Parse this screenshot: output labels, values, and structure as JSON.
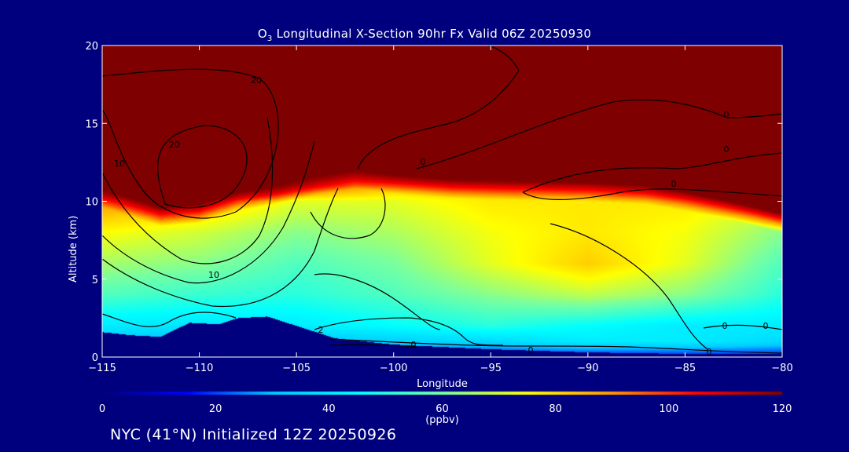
{
  "title_prefix": "O",
  "title_sub": "3",
  "title_rest": " Longitudinal X-Section 90hr  Fx Valid 06Z 20250930",
  "xlabel": "Longitude",
  "ylabel": "Altitude (km)",
  "colorbar_units": "(ppbv)",
  "footer": "NYC (41°N) Initialized 12Z 20250926",
  "colors": {
    "background": "#00007f",
    "stops": [
      "#00007f",
      "#0000ff",
      "#00c8ff",
      "#00ffff",
      "#78ffa0",
      "#ffff00",
      "#ff9600",
      "#ff0000",
      "#7f0000"
    ]
  },
  "chart_data": {
    "type": "heatmap",
    "title": "O3 Longitudinal X-Section 90hr  Fx Valid 06Z 20250930",
    "xlabel": "Longitude",
    "ylabel": "Altitude (km)",
    "xlim": [
      -115,
      -80
    ],
    "ylim": [
      0,
      20
    ],
    "xticks": [
      -115,
      -110,
      -105,
      -100,
      -95,
      -90,
      -85,
      -80
    ],
    "xtick_labels": [
      "−115",
      "−110",
      "−105",
      "−100",
      "−95",
      "−90",
      "−85",
      "−80"
    ],
    "yticks": [
      0,
      5,
      10,
      15,
      20
    ],
    "ytick_labels": [
      "0",
      "5",
      "10",
      "15",
      "20"
    ],
    "colorbar": {
      "label": "(ppbv)",
      "range": [
        0,
        120
      ],
      "ticks": [
        0,
        20,
        40,
        60,
        80,
        100,
        120
      ],
      "tick_labels": [
        "0",
        "20",
        "40",
        "60",
        "80",
        "100",
        "120"
      ]
    },
    "terrain_profile": {
      "x": [
        -115,
        -113.5,
        -112,
        -110.5,
        -109,
        -108,
        -106.5,
        -105,
        -103,
        -100,
        -95,
        -90,
        -85,
        -80
      ],
      "height_km": [
        1.6,
        1.4,
        1.3,
        2.2,
        2.1,
        2.5,
        2.6,
        2.0,
        1.2,
        0.8,
        0.5,
        0.3,
        0.2,
        0.2
      ]
    },
    "tropopause_height_km": {
      "x": [
        -115,
        -112,
        -110,
        -108,
        -106,
        -104,
        -102,
        -100,
        -97,
        -94,
        -90,
        -87,
        -85,
        -82,
        -80
      ],
      "values": [
        10.8,
        9.6,
        9.8,
        10.6,
        11.0,
        11.6,
        12.0,
        11.7,
        11.4,
        11.3,
        11.2,
        11.0,
        10.6,
        9.8,
        9.2
      ]
    },
    "field_ppbv": {
      "x": [
        -115,
        -110,
        -105,
        -100,
        -95,
        -90,
        -85,
        -80
      ],
      "y": [
        0,
        1,
        2,
        4,
        6,
        8,
        10,
        11,
        13,
        15,
        20
      ],
      "values": [
        [
          25,
          20,
          20,
          20,
          15,
          15,
          15,
          15
        ],
        [
          30,
          28,
          30,
          32,
          35,
          40,
          40,
          35
        ],
        [
          40,
          38,
          40,
          45,
          50,
          45,
          40,
          40
        ],
        [
          55,
          52,
          50,
          55,
          62,
          68,
          62,
          50
        ],
        [
          65,
          62,
          55,
          60,
          72,
          82,
          72,
          55
        ],
        [
          75,
          70,
          62,
          66,
          74,
          78,
          74,
          62
        ],
        [
          90,
          85,
          72,
          72,
          78,
          78,
          78,
          72
        ],
        [
          115,
          120,
          100,
          85,
          85,
          85,
          92,
          110
        ],
        [
          120,
          120,
          120,
          120,
          120,
          120,
          120,
          120
        ],
        [
          120,
          120,
          120,
          120,
          120,
          120,
          120,
          120
        ],
        [
          120,
          120,
          120,
          120,
          120,
          120,
          120,
          120
        ]
      ]
    },
    "contour_labels": [
      "20",
      "20",
      "10",
      "10",
      "0",
      "0",
      "0",
      "0",
      "2",
      "0",
      "0",
      "0",
      "0",
      "0"
    ]
  }
}
